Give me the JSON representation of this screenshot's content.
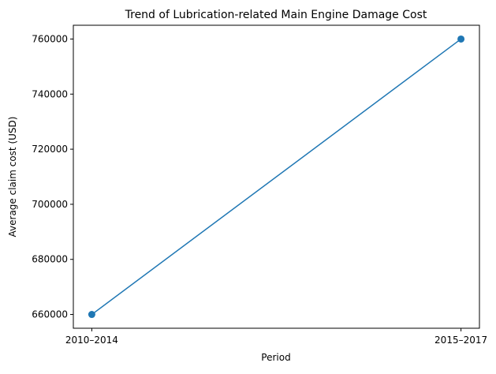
{
  "chart_data": {
    "type": "line",
    "title": "Trend of Lubrication-related Main Engine Damage Cost",
    "xlabel": "Period",
    "ylabel": "Average claim cost (USD)",
    "categories": [
      "2010–2014",
      "2015–2017"
    ],
    "values": [
      660000,
      760000
    ],
    "xlim": [
      -0.05,
      1.05
    ],
    "ylim": [
      655000,
      765000
    ],
    "yticks": [
      660000,
      680000,
      700000,
      720000,
      740000,
      760000
    ],
    "ytick_labels": [
      "660000",
      "680000",
      "700000",
      "720000",
      "740000",
      "760000"
    ],
    "grid": false,
    "marker": "circle",
    "color": "#1f77b4"
  }
}
